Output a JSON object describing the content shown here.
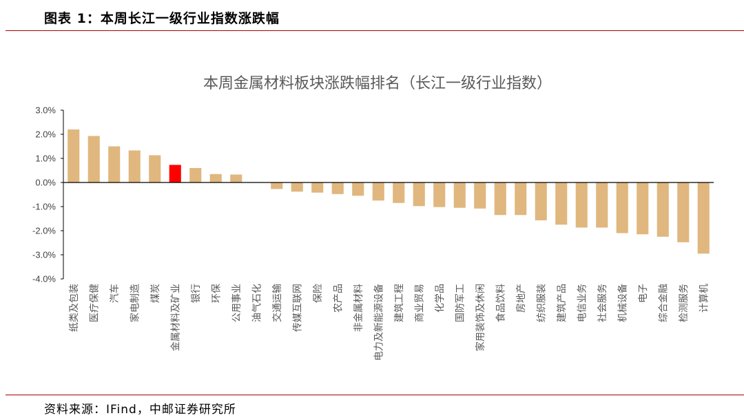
{
  "header": {
    "title": "图表 1：本周长江一级行业指数涨跌幅"
  },
  "footer": {
    "source": "资料来源：IFind，中邮证券研究所"
  },
  "colors": {
    "bar": "#E0B77E",
    "highlight": "#FF0000",
    "rule": "#A80000",
    "axis": "#000000"
  },
  "chart_data": {
    "type": "bar",
    "title": "本周金属材料板块涨跌幅排名（长江一级行业指数）",
    "xlabel": "",
    "ylabel": "",
    "ylim": [
      -4.0,
      3.0
    ],
    "yticks": [
      "3.0%",
      "2.0%",
      "1.0%",
      "0.0%",
      "-1.0%",
      "-2.0%",
      "-3.0%",
      "-4.0%"
    ],
    "ytick_values": [
      3.0,
      2.0,
      1.0,
      0.0,
      -1.0,
      -2.0,
      -3.0,
      -4.0
    ],
    "highlight_category": "金属材料及矿业",
    "categories": [
      "纸类及包装",
      "医疗保健",
      "汽车",
      "家电制造",
      "煤炭",
      "金属材料及矿业",
      "银行",
      "环保",
      "公用事业",
      "油气石化",
      "交通运输",
      "传媒互联网",
      "保险",
      "农产品",
      "非金属材料",
      "电力及新能源设备",
      "建筑工程",
      "商业贸易",
      "化学品",
      "国防军工",
      "家用装饰及休闲",
      "食品饮料",
      "房地产",
      "纺织服装",
      "建筑产品",
      "电信业务",
      "社会服务",
      "机械设备",
      "电子",
      "综合金融",
      "检测服务",
      "计算机"
    ],
    "values": [
      2.2,
      1.93,
      1.5,
      1.33,
      1.13,
      0.73,
      0.6,
      0.35,
      0.33,
      0.0,
      -0.27,
      -0.38,
      -0.42,
      -0.48,
      -0.55,
      -0.75,
      -0.85,
      -0.98,
      -1.02,
      -1.05,
      -1.08,
      -1.35,
      -1.35,
      -1.57,
      -1.75,
      -1.87,
      -1.87,
      -2.1,
      -2.15,
      -2.25,
      -2.48,
      -2.95
    ]
  }
}
